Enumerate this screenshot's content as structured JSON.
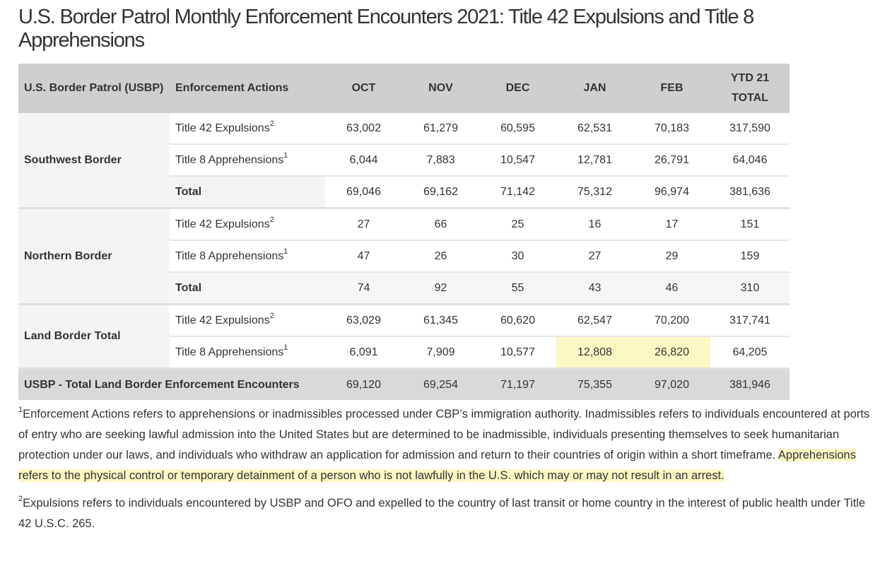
{
  "title": "U.S. Border Patrol Monthly Enforcement Encounters 2021: Title 42 Expulsions and Title 8 Apprehensions",
  "table": {
    "headers": [
      "U.S. Border Patrol (USBP)",
      "Enforcement Actions",
      "OCT",
      "NOV",
      "DEC",
      "JAN",
      "FEB",
      "YTD 21 TOTAL"
    ],
    "groups": [
      {
        "name": "Southwest Border",
        "rows": [
          {
            "action": "Title 42 Expulsions",
            "sup": "2",
            "values": [
              "63,002",
              "61,279",
              "60,595",
              "62,531",
              "70,183",
              "317,590"
            ]
          },
          {
            "action": "Title 8 Apprehensions",
            "sup": "1",
            "values": [
              "6,044",
              "7,883",
              "10,547",
              "12,781",
              "26,791",
              "64,046"
            ]
          },
          {
            "action": "Total",
            "sup": "",
            "values": [
              "69,046",
              "69,162",
              "71,142",
              "75,312",
              "96,974",
              "381,636"
            ]
          }
        ]
      },
      {
        "name": "Northern Border",
        "rows": [
          {
            "action": "Title 42 Expulsions",
            "sup": "2",
            "values": [
              "27",
              "66",
              "25",
              "16",
              "17",
              "151"
            ]
          },
          {
            "action": "Title 8 Apprehensions",
            "sup": "1",
            "values": [
              "47",
              "26",
              "30",
              "27",
              "29",
              "159"
            ]
          },
          {
            "action": "Total",
            "sup": "",
            "values": [
              "74",
              "92",
              "55",
              "43",
              "46",
              "310"
            ]
          }
        ]
      },
      {
        "name": "Land Border Total",
        "rows": [
          {
            "action": "Title 42 Expulsions",
            "sup": "2",
            "values": [
              "63,029",
              "61,345",
              "60,620",
              "62,547",
              "70,200",
              "317,741"
            ]
          },
          {
            "action": "Title 8 Apprehensions",
            "sup": "1",
            "values": [
              "6,091",
              "7,909",
              "10,577",
              "12,808",
              "26,820",
              "64,205"
            ]
          }
        ]
      }
    ],
    "footer": {
      "label": "USBP - Total Land Border Enforcement Encounters",
      "values": [
        "69,120",
        "69,254",
        "71,197",
        "75,355",
        "97,020",
        "381,946"
      ]
    },
    "highlight_color": "#fbf8c4"
  },
  "notes": [
    {
      "sup": "1",
      "text": "Enforcement Actions refers to apprehensions or inadmissibles processed under CBP’s immigration authority. Inadmissibles refers to individuals encountered at ports of entry who are seeking lawful admission into the United States but are determined to be inadmissible, individuals presenting themselves to seek humanitarian protection under our laws, and individuals who withdraw an application for admission and return to their countries of origin within a short timeframe. ",
      "highlighted": "Apprehensions refers to the physical control or temporary detainment of a person who is not lawfully in the U.S. which may or may not result in an arrest."
    },
    {
      "sup": "2",
      "text": "Expulsions refers to individuals encountered by USBP and OFO and expelled to the country of last transit or home country in the interest of public health under Title 42 U.S.C. 265."
    }
  ]
}
